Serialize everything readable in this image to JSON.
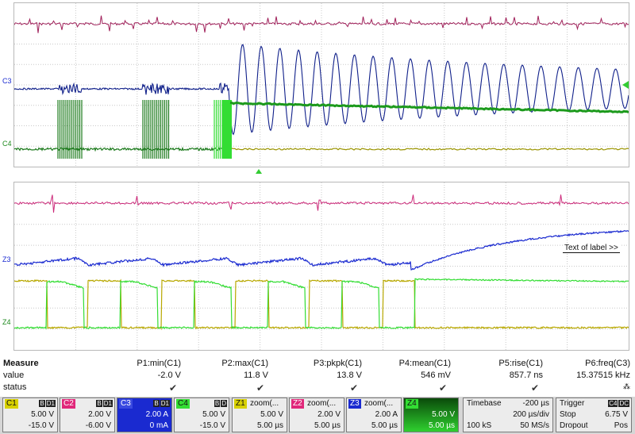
{
  "overlay": {
    "label_text": "Text of label >>"
  },
  "markers": {
    "top_c3": "C3",
    "top_c4": "C4",
    "zoom_z3": "Z3",
    "zoom_z4": "Z4"
  },
  "measure": {
    "row_labels": {
      "measure": "Measure",
      "value": "value",
      "status": "status"
    },
    "params": [
      {
        "name": "P1:min(C1)",
        "value": "-2.0 V"
      },
      {
        "name": "P2:max(C1)",
        "value": "11.8 V"
      },
      {
        "name": "P3:pkpk(C1)",
        "value": "13.8 V"
      },
      {
        "name": "P4:mean(C1)",
        "value": "546 mV"
      },
      {
        "name": "P5:rise(C1)",
        "value": "857.7 ns"
      },
      {
        "name": "P6:freq(C3)",
        "value": "15.37515 kHz"
      }
    ],
    "p6_status_extra": "⁂"
  },
  "channels": [
    {
      "id": "C1",
      "badges": [
        "B",
        "D1"
      ],
      "v1": "5.00 V",
      "v2": "-15.0 V",
      "color": "#d7d000"
    },
    {
      "id": "C2",
      "badges": [
        "B",
        "D1"
      ],
      "v1": "2.00 V",
      "v2": "-6.00 V",
      "color": "#e0287a"
    },
    {
      "id": "C3",
      "badges": [
        "B",
        "D1"
      ],
      "v1": "2.00 A",
      "v2": "0 mA",
      "color": "#1a2ad0"
    },
    {
      "id": "C4",
      "badges": [
        "B",
        "D"
      ],
      "v1": "5.00 V",
      "v2": "-15.0 V",
      "color": "#33dd33"
    }
  ],
  "zooms": [
    {
      "id": "Z1",
      "title": "zoom(...",
      "v1": "5.00 V",
      "v2": "5.00 µs",
      "color": "#d7d000"
    },
    {
      "id": "Z2",
      "title": "zoom(...",
      "v1": "2.00 V",
      "v2": "5.00 µs",
      "color": "#e0287a"
    },
    {
      "id": "Z3",
      "title": "zoom(...",
      "v1": "2.00 A",
      "v2": "5.00 µs",
      "color": "#1a2ad0"
    },
    {
      "id": "Z4",
      "title": "",
      "v1": "5.00 V",
      "v2": "5.00 µs",
      "color": "#33dd33"
    }
  ],
  "timebase": {
    "title": "Timebase",
    "delay": "-200 µs",
    "div": "200 µs/div",
    "samples": "100 kS",
    "rate": "50 MS/s"
  },
  "trigger": {
    "title": "Trigger",
    "badges": [
      "C4",
      "DC"
    ],
    "mode": "Stop",
    "level": "6.75 V",
    "type": "Dropout",
    "slope": "Pos"
  }
}
